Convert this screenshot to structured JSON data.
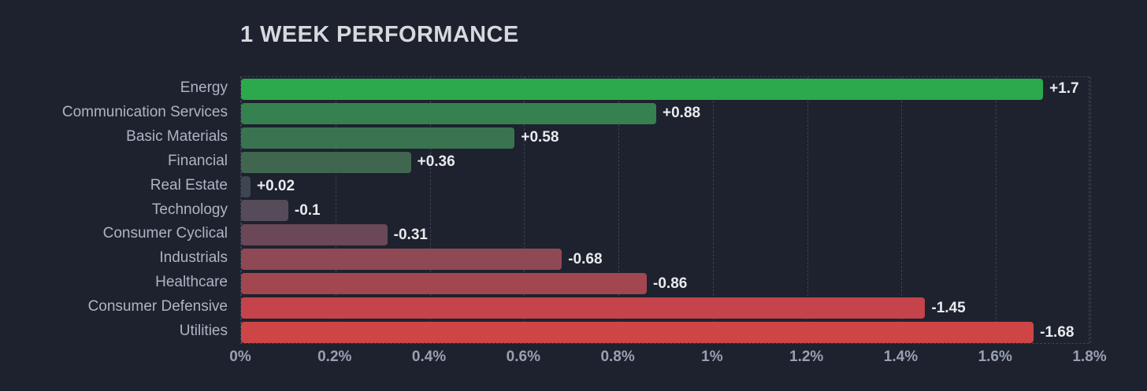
{
  "title": "1 WEEK PERFORMANCE",
  "colors": {
    "background": "#1d222e",
    "grid": "#3b4150",
    "title_text": "#d7d9df",
    "category_text": "#aeb4c3",
    "value_text": "#e8eaee",
    "tick_text": "#99a0b2"
  },
  "chart_data": {
    "type": "bar",
    "orientation": "horizontal",
    "title": "1 WEEK PERFORMANCE",
    "xlabel": "",
    "ylabel": "",
    "xlim": [
      0,
      1.8
    ],
    "x_tick_values": [
      0,
      0.2,
      0.4,
      0.6,
      0.8,
      1.0,
      1.2,
      1.4,
      1.6,
      1.8
    ],
    "x_tick_labels": [
      "0%",
      "0.2%",
      "0.4%",
      "0.6%",
      "0.8%",
      "1%",
      "1.2%",
      "1.4%",
      "1.6%",
      "1.8%"
    ],
    "grid": "vertical-dashed",
    "legend": "none",
    "note": "bar length encodes absolute value; color encodes sign/magnitude (green positive to red negative)",
    "categories": [
      "Energy",
      "Communication Services",
      "Basic Materials",
      "Financial",
      "Real Estate",
      "Technology",
      "Consumer Cyclical",
      "Industrials",
      "Healthcare",
      "Consumer Defensive",
      "Utilities"
    ],
    "values": [
      1.7,
      0.88,
      0.58,
      0.36,
      0.02,
      -0.1,
      -0.31,
      -0.68,
      -0.86,
      -1.45,
      -1.68
    ],
    "value_labels": [
      "+1.7",
      "+0.88",
      "+0.58",
      "+0.36",
      "+0.02",
      "-0.1",
      "-0.31",
      "-0.68",
      "-0.86",
      "-1.45",
      "-1.68"
    ],
    "bar_colors": [
      "#2ca94c",
      "#35814f",
      "#3a7350",
      "#406650",
      "#3e4652",
      "#554b59",
      "#6b4857",
      "#8f4954",
      "#a24650",
      "#c5434a",
      "#ce4545"
    ]
  }
}
